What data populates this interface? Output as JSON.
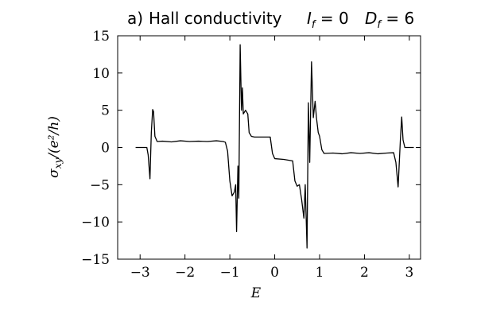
{
  "chart_data": {
    "type": "line",
    "panel_label": "a)",
    "title": "Hall conductivity",
    "annotations": [
      {
        "symbol": "I",
        "subscript": "f",
        "text": " = 0"
      },
      {
        "symbol": "D",
        "subscript": "f",
        "text": " = 6"
      }
    ],
    "xlabel": "E",
    "ylabel": {
      "symbol": "σ",
      "subscript": "xy",
      "text": "/(e²/h)"
    },
    "color": "#000000",
    "x": [
      -3.1,
      -2.85,
      -2.82,
      -2.78,
      -2.75,
      -2.72,
      -2.7,
      -2.67,
      -2.62,
      -2.5,
      -2.3,
      -2.1,
      -1.9,
      -1.7,
      -1.5,
      -1.3,
      -1.15,
      -1.1,
      -1.05,
      -1.0,
      -0.95,
      -0.9,
      -0.87,
      -0.85,
      -0.82,
      -0.8,
      -0.77,
      -0.74,
      -0.72,
      -0.7,
      -0.65,
      -0.6,
      -0.57,
      -0.52,
      -0.45,
      -0.1,
      -0.05,
      0.0,
      0.2,
      0.4,
      0.45,
      0.5,
      0.55,
      0.6,
      0.65,
      0.68,
      0.72,
      0.75,
      0.78,
      0.82,
      0.86,
      0.9,
      0.93,
      0.97,
      1.0,
      1.05,
      1.1,
      1.3,
      1.5,
      1.7,
      1.9,
      2.1,
      2.3,
      2.5,
      2.65,
      2.7,
      2.75,
      2.8,
      2.83,
      2.86,
      2.9,
      3.1
    ],
    "values": [
      0,
      0,
      -1,
      -4.2,
      2,
      5.1,
      4.8,
      1.5,
      0.8,
      0.85,
      0.75,
      0.9,
      0.8,
      0.85,
      0.8,
      0.9,
      0.8,
      0.7,
      -0.5,
      -4.5,
      -6.5,
      -6,
      -5,
      -11.3,
      -2.5,
      -6.8,
      13.8,
      5,
      8,
      4.5,
      5,
      4.5,
      2,
      1.5,
      1.4,
      1.4,
      -0.8,
      -1.5,
      -1.6,
      -1.8,
      -4.5,
      -5.2,
      -5,
      -7,
      -9.5,
      -5,
      -13.5,
      6,
      -2,
      11.5,
      4,
      6.2,
      4,
      2,
      1.5,
      -0.3,
      -0.8,
      -0.75,
      -0.85,
      -0.7,
      -0.8,
      -0.7,
      -0.85,
      -0.75,
      -0.7,
      -2,
      -5.3,
      1,
      4.1,
      1,
      0,
      0
    ],
    "xlim": [
      -3.5,
      3.25
    ],
    "ylim": [
      -15,
      15
    ],
    "xticks": [
      {
        "value": -3,
        "label": "−3"
      },
      {
        "value": -2,
        "label": "−2"
      },
      {
        "value": -1,
        "label": "−1"
      },
      0,
      1,
      2,
      3
    ],
    "yticks": [
      {
        "value": -15,
        "label": "−15"
      },
      {
        "value": -10,
        "label": "−10"
      },
      {
        "value": -5,
        "label": "−5"
      },
      0,
      5,
      10,
      15
    ]
  }
}
